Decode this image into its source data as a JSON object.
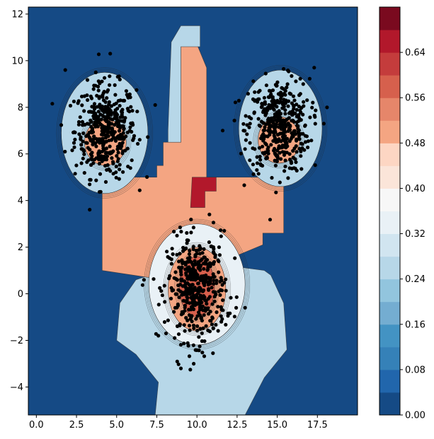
{
  "chart_data": {
    "type": "contour",
    "title": "",
    "xlabel": "",
    "ylabel": "",
    "xlim": [
      -0.5,
      20
    ],
    "ylim": [
      -5.2,
      12.3
    ],
    "x_ticks": [
      0.0,
      2.5,
      5.0,
      7.5,
      10.0,
      12.5,
      15.0,
      17.5
    ],
    "x_tick_labels": [
      "0.0",
      "2.5",
      "5.0",
      "7.5",
      "10.0",
      "12.5",
      "15.0",
      "17.5"
    ],
    "y_ticks": [
      -4,
      -2,
      0,
      2,
      4,
      6,
      8,
      10,
      12
    ],
    "y_tick_labels": [
      "−4",
      "−2",
      "0",
      "2",
      "4",
      "6",
      "8",
      "10",
      "12"
    ],
    "colorbar": {
      "levels": [
        0.0,
        0.04,
        0.08,
        0.12,
        0.16,
        0.2,
        0.24,
        0.28,
        0.32,
        0.36,
        0.4,
        0.44,
        0.48,
        0.52,
        0.56,
        0.6,
        0.64,
        0.68
      ],
      "colors": [
        "#154a85",
        "#2166ac",
        "#3581b8",
        "#4393c3",
        "#74add1",
        "#92c5de",
        "#b7d7e8",
        "#d1e5f0",
        "#e9f1f6",
        "#f7f7f7",
        "#fbe5d9",
        "#fdd6c3",
        "#f4a582",
        "#e6866a",
        "#d6604d",
        "#c43c3c",
        "#b2182b",
        "#7a0a1f"
      ],
      "tick_values": [
        0.0,
        0.08,
        0.16,
        0.24,
        0.32,
        0.4,
        0.48,
        0.56,
        0.64
      ],
      "tick_labels": [
        "0.00",
        "0.08",
        "0.16",
        "0.24",
        "0.32",
        "0.40",
        "0.48",
        "0.56",
        "0.64"
      ]
    },
    "regions": [
      {
        "level": 0.24,
        "polygon": [
          [
            6.2,
            -2.6
          ],
          [
            7.6,
            -3.8
          ],
          [
            7.4,
            -5.2
          ],
          [
            13.0,
            -5.2
          ],
          [
            14.2,
            -3.6
          ],
          [
            15.6,
            -2.4
          ],
          [
            15.4,
            -0.4
          ],
          [
            14.6,
            0.8
          ],
          [
            14.2,
            1.0
          ],
          [
            12.0,
            1.2
          ],
          [
            8.8,
            1.2
          ],
          [
            6.2,
            0.6
          ],
          [
            5.2,
            -0.4
          ],
          [
            5.0,
            -2.0
          ]
        ]
      },
      {
        "level": 0.48,
        "polygon": [
          [
            4.1,
            5.0
          ],
          [
            7.5,
            5.0
          ],
          [
            7.5,
            5.5
          ],
          [
            7.9,
            5.5
          ],
          [
            7.9,
            6.5
          ],
          [
            9.0,
            6.5
          ],
          [
            9.0,
            10.7
          ],
          [
            10.0,
            10.7
          ],
          [
            10.6,
            9.7
          ],
          [
            10.6,
            5.0
          ],
          [
            13.5,
            5.0
          ],
          [
            15.4,
            5.0
          ],
          [
            15.4,
            2.6
          ],
          [
            14.1,
            2.6
          ],
          [
            14.1,
            2.1
          ],
          [
            12.0,
            1.5
          ],
          [
            10.0,
            1.2
          ],
          [
            8.5,
            1.4
          ],
          [
            7.0,
            0.7
          ],
          [
            4.1,
            1.0
          ]
        ]
      },
      {
        "level": 0.24,
        "polygon": [
          [
            8.2,
            7.0
          ],
          [
            8.4,
            10.8
          ],
          [
            9.0,
            11.5
          ],
          [
            10.2,
            11.5
          ],
          [
            10.2,
            10.6
          ],
          [
            9.8,
            10.6
          ],
          [
            9.0,
            10.6
          ],
          [
            9.0,
            6.5
          ],
          [
            8.2,
            6.5
          ]
        ]
      },
      {
        "level": 0.64,
        "polygon": [
          [
            9.6,
            3.7
          ],
          [
            9.7,
            5.0
          ],
          [
            11.2,
            5.0
          ],
          [
            11.2,
            4.4
          ],
          [
            10.5,
            4.4
          ],
          [
            10.5,
            3.7
          ]
        ]
      }
    ],
    "blobs": [
      {
        "level": 0.24,
        "cx": 4.25,
        "cy": 6.9,
        "rx": 2.7,
        "ry": 2.6
      },
      {
        "level": 0.48,
        "cx": 4.3,
        "cy": 6.5,
        "rx": 1.3,
        "ry": 1.0
      },
      {
        "level": 0.24,
        "cx": 15.2,
        "cy": 7.1,
        "rx": 2.6,
        "ry": 2.5
      },
      {
        "level": 0.48,
        "cx": 15.1,
        "cy": 6.6,
        "rx": 1.3,
        "ry": 1.0
      },
      {
        "level": 0.32,
        "cx": 10.0,
        "cy": 0.4,
        "rx": 3.0,
        "ry": 2.6
      },
      {
        "level": 0.48,
        "cx": 10.0,
        "cy": 0.2,
        "rx": 1.8,
        "ry": 1.8
      },
      {
        "level": 0.56,
        "cx": 10.0,
        "cy": 0.3,
        "rx": 1.1,
        "ry": 1.3
      }
    ],
    "point_clusters": [
      {
        "cx": 4.3,
        "cy": 7.0,
        "sx": 0.95,
        "sy": 1.0,
        "n": 430
      },
      {
        "cx": 15.1,
        "cy": 7.2,
        "sx": 0.95,
        "sy": 1.0,
        "n": 430
      },
      {
        "cx": 10.0,
        "cy": 0.2,
        "sx": 0.9,
        "sy": 1.1,
        "n": 440
      }
    ],
    "outlier_points": [
      {
        "x": 1.8,
        "y": 9.6
      },
      {
        "x": 4.6,
        "y": 10.3
      },
      {
        "x": 5.6,
        "y": 8.7
      },
      {
        "x": 17.3,
        "y": 9.7
      },
      {
        "x": 17.9,
        "y": 7.3
      },
      {
        "x": 12.9,
        "y": 7.0
      },
      {
        "x": 11.6,
        "y": 7.0
      },
      {
        "x": 7.4,
        "y": 8.1
      },
      {
        "x": 11.7,
        "y": 2.7
      },
      {
        "x": 7.6,
        "y": -1.8
      },
      {
        "x": 9.0,
        "y": -3.2
      },
      {
        "x": 9.8,
        "y": -3.0
      },
      {
        "x": 13.0,
        "y": -0.6
      },
      {
        "x": 6.7,
        "y": 0.6
      },
      {
        "x": 8.5,
        "y": 1.7
      }
    ]
  }
}
